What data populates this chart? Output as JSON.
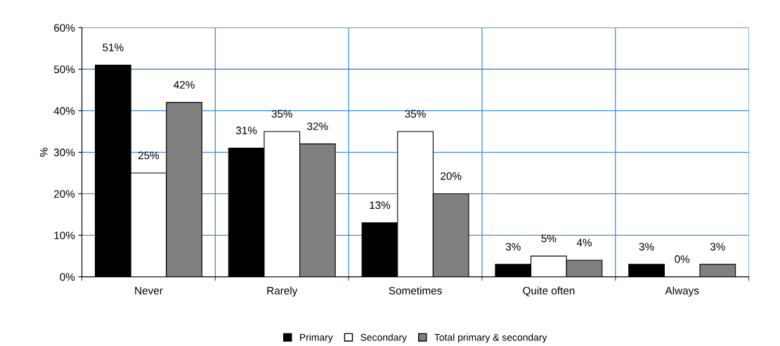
{
  "chart_data": {
    "type": "bar",
    "ylabel": "%",
    "categories": [
      "Never",
      "Rarely",
      "Sometimes",
      "Quite often",
      "Always"
    ],
    "series": [
      {
        "name": "Primary",
        "color": "#000000",
        "values": [
          51,
          31,
          13,
          3,
          3
        ],
        "value_labels": [
          "51%",
          "31%",
          "13%",
          "3%",
          "3%"
        ]
      },
      {
        "name": "Secondary",
        "color": "#ffffff",
        "values": [
          25,
          35,
          35,
          5,
          0
        ],
        "value_labels": [
          "25%",
          "35%",
          "35%",
          "5%",
          "0%"
        ]
      },
      {
        "name": "Total primary & secondary",
        "color": "#808080",
        "values": [
          42,
          32,
          20,
          4,
          3
        ],
        "value_labels": [
          "42%",
          "32%",
          "20%",
          "4%",
          "3%"
        ]
      }
    ],
    "ylim": [
      0,
      60
    ],
    "yticks": [
      {
        "value": 0,
        "label": "0%"
      },
      {
        "value": 10,
        "label": "10%"
      },
      {
        "value": 20,
        "label": "20%"
      },
      {
        "value": 30,
        "label": "30%"
      },
      {
        "value": 40,
        "label": "40%"
      },
      {
        "value": 50,
        "label": "50%"
      },
      {
        "value": 60,
        "label": "60%"
      }
    ],
    "grid": true,
    "legend": "bottom"
  }
}
